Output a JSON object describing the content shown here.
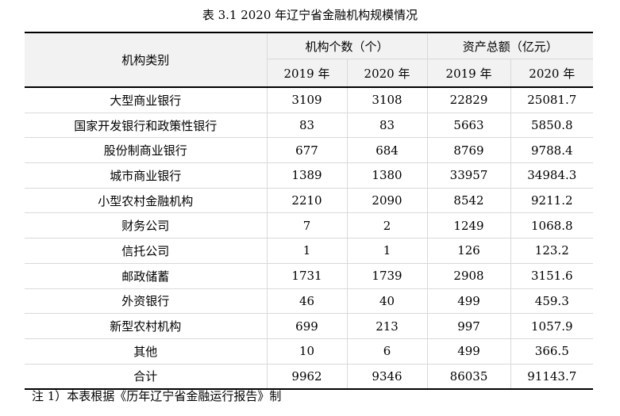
{
  "caption": "表 3.1  2020 年辽宁省金融机构规模情况",
  "table": {
    "header": {
      "category": "机构类别",
      "group_count": "机构个数（个）",
      "group_assets": "资产总额（亿元）",
      "years": [
        "2019 年",
        "2020 年",
        "2019 年",
        "2020 年"
      ]
    },
    "rows": [
      {
        "name": "大型商业银行",
        "v": [
          "3109",
          "3108",
          "22829",
          "25081.7"
        ]
      },
      {
        "name": "国家开发银行和政策性银行",
        "v": [
          "83",
          "83",
          "5663",
          "5850.8"
        ]
      },
      {
        "name": "股份制商业银行",
        "v": [
          "677",
          "684",
          "8769",
          "9788.4"
        ]
      },
      {
        "name": "城市商业银行",
        "v": [
          "1389",
          "1380",
          "33957",
          "34984.3"
        ]
      },
      {
        "name": "小型农村金融机构",
        "v": [
          "2210",
          "2090",
          "8542",
          "9211.2"
        ]
      },
      {
        "name": "财务公司",
        "v": [
          "7",
          "2",
          "1249",
          "1068.8"
        ]
      },
      {
        "name": "信托公司",
        "v": [
          "1",
          "1",
          "126",
          "123.2"
        ]
      },
      {
        "name": "邮政储蓄",
        "v": [
          "1731",
          "1739",
          "2908",
          "3151.6"
        ]
      },
      {
        "name": "外资银行",
        "v": [
          "46",
          "40",
          "499",
          "459.3"
        ]
      },
      {
        "name": "新型农村机构",
        "v": [
          "699",
          "213",
          "997",
          "1057.9"
        ]
      },
      {
        "name": "其他",
        "v": [
          "10",
          "6",
          "499",
          "366.5"
        ]
      },
      {
        "name": "合计",
        "v": [
          "9962",
          "9346",
          "86035",
          "91143.7"
        ]
      }
    ]
  },
  "note": "注 1）本表根据《历年辽宁省金融运行报告》制"
}
